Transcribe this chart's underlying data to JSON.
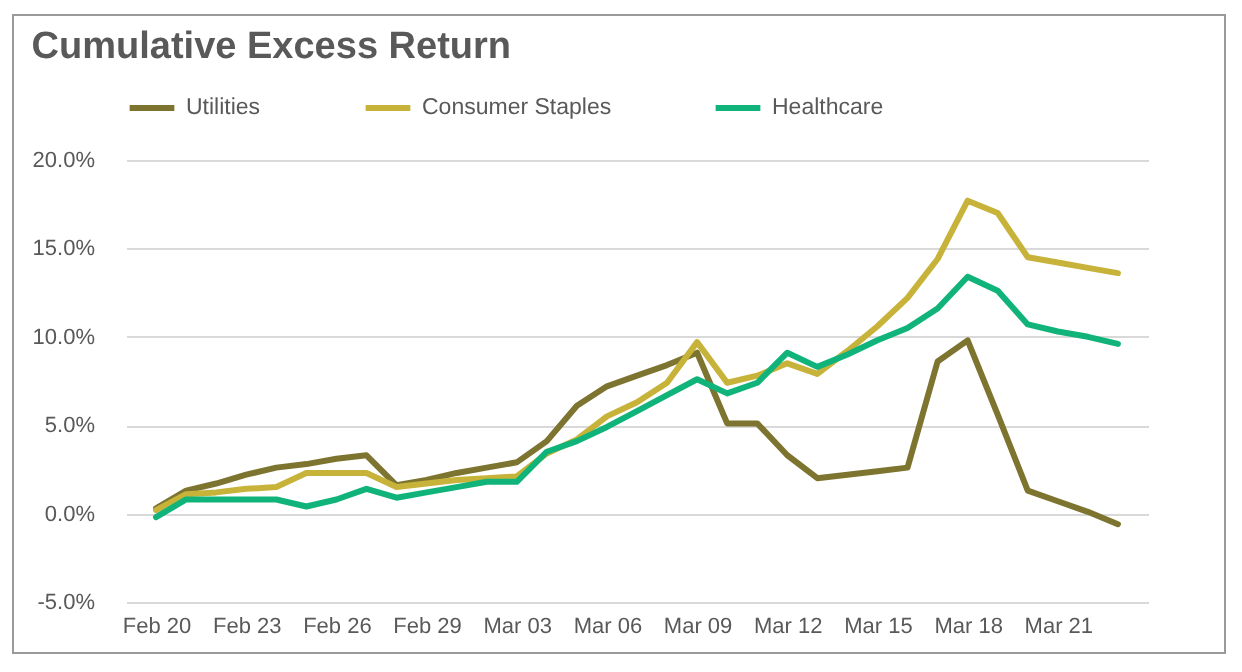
{
  "chart_data": {
    "type": "line",
    "title": "Cumulative Excess Return",
    "x": [
      "--02-20",
      "--02-21",
      "--02-22",
      "--02-23",
      "--02-24",
      "--02-25",
      "--02-26",
      "--02-27",
      "--02-28",
      "--02-29",
      "--03-01",
      "--03-02",
      "--03-03",
      "--03-04",
      "--03-05",
      "--03-06",
      "--03-07",
      "--03-08",
      "--03-09",
      "--03-10",
      "--03-11",
      "--03-12",
      "--03-13",
      "--03-14",
      "--03-15",
      "--03-16",
      "--03-17",
      "--03-18",
      "--03-19",
      "--03-20",
      "--03-21",
      "--03-22",
      "--03-23"
    ],
    "series": [
      {
        "name": "Utilities",
        "color": "#7d7430",
        "values": [
          0.3,
          1.3,
          1.7,
          2.2,
          2.6,
          2.8,
          3.1,
          3.3,
          1.6,
          1.9,
          2.3,
          2.6,
          2.9,
          4.1,
          6.1,
          7.2,
          7.8,
          8.4,
          9.1,
          5.1,
          5.1,
          3.3,
          2.0,
          2.2,
          2.4,
          2.6,
          8.6,
          9.8,
          5.6,
          1.3,
          0.7,
          0.1,
          -0.6
        ]
      },
      {
        "name": "Consumer Staples",
        "color": "#c8b33a",
        "values": [
          0.2,
          1.1,
          1.2,
          1.4,
          1.5,
          2.3,
          2.3,
          2.3,
          1.5,
          1.7,
          1.9,
          2.0,
          2.1,
          3.4,
          4.2,
          5.5,
          6.3,
          7.4,
          9.7,
          7.4,
          7.8,
          8.5,
          7.9,
          9.2,
          10.6,
          12.2,
          14.4,
          17.7,
          17.0,
          14.5,
          14.2,
          13.9,
          13.6
        ]
      },
      {
        "name": "Healthcare",
        "color": "#10b47a",
        "values": [
          -0.2,
          0.8,
          0.8,
          0.8,
          0.8,
          0.4,
          0.8,
          1.4,
          0.9,
          1.2,
          1.5,
          1.8,
          1.8,
          3.5,
          4.1,
          4.9,
          5.8,
          6.7,
          7.6,
          6.8,
          7.4,
          9.1,
          8.3,
          9.0,
          9.8,
          10.5,
          11.6,
          13.4,
          12.6,
          10.7,
          10.3,
          10.0,
          9.6
        ]
      }
    ],
    "xlim": [
      "--02-19",
      "--03-24"
    ],
    "xticks": [
      {
        "value": "--02-20",
        "label": "Feb 20"
      },
      {
        "value": "--02-23",
        "label": "Feb 23"
      },
      {
        "value": "--02-26",
        "label": "Feb 26"
      },
      {
        "value": "--02-29",
        "label": "Feb 29"
      },
      {
        "value": "--03-03",
        "label": "Mar 03"
      },
      {
        "value": "--03-06",
        "label": "Mar 06"
      },
      {
        "value": "--03-09",
        "label": "Mar 09"
      },
      {
        "value": "--03-12",
        "label": "Mar 12"
      },
      {
        "value": "--03-15",
        "label": "Mar 15"
      },
      {
        "value": "--03-18",
        "label": "Mar 18"
      },
      {
        "value": "--03-21",
        "label": "Mar 21"
      }
    ],
    "ylim": [
      -5,
      20
    ],
    "yticks": [
      {
        "value": -5,
        "label": "-5.0%"
      },
      {
        "value": 0,
        "label": "0.0%"
      },
      {
        "value": 5,
        "label": "5.0%"
      },
      {
        "value": 10,
        "label": "10.0%"
      },
      {
        "value": 15,
        "label": "15.0%"
      },
      {
        "value": 20,
        "label": "20.0%"
      }
    ],
    "grid": "y",
    "legend": "top left",
    "marker": "none",
    "line_style": "solid"
  }
}
